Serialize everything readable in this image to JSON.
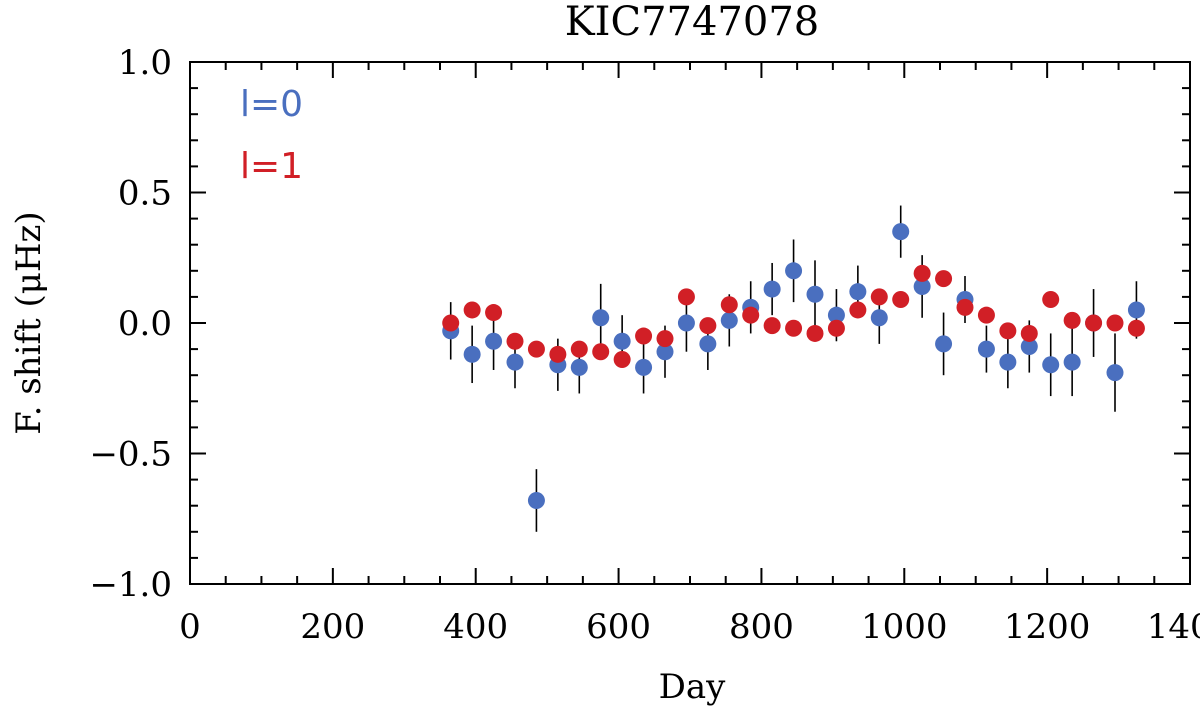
{
  "chart_data": {
    "type": "scatter",
    "title": "KIC7747078",
    "xlabel": "Day",
    "ylabel": "F. shift (μHz)",
    "xlim": [
      0,
      1400
    ],
    "ylim": [
      -1.0,
      1.0
    ],
    "xticks": [
      0,
      200,
      400,
      600,
      800,
      1000,
      1200,
      1400
    ],
    "xtick_labels": [
      "0",
      "200",
      "400",
      "600",
      "800",
      "1000",
      "1200",
      "1400"
    ],
    "yticks": [
      -1.0,
      -0.5,
      0.0,
      0.5,
      1.0
    ],
    "ytick_labels": [
      "−1.0",
      "−0.5",
      "0.0",
      "0.5",
      "1.0"
    ],
    "grid": false,
    "legend_position": "top-left",
    "series": [
      {
        "name": "l=0",
        "color": "#4a6fbf",
        "x": [
          365,
          395,
          425,
          455,
          485,
          515,
          545,
          575,
          605,
          635,
          665,
          695,
          725,
          755,
          785,
          815,
          845,
          875,
          905,
          935,
          965,
          995,
          1025,
          1055,
          1085,
          1115,
          1145,
          1175,
          1205,
          1235,
          1265,
          1295,
          1325
        ],
        "y": [
          -0.03,
          -0.12,
          -0.07,
          -0.15,
          -0.68,
          -0.16,
          -0.17,
          0.02,
          -0.07,
          -0.17,
          -0.11,
          0.0,
          -0.08,
          0.01,
          0.06,
          0.13,
          0.2,
          0.11,
          0.03,
          0.12,
          0.02,
          0.35,
          0.14,
          -0.08,
          0.09,
          -0.1,
          -0.15,
          -0.09,
          -0.16,
          -0.15,
          0.0,
          -0.19,
          0.05
        ],
        "err": [
          0.11,
          0.11,
          0.11,
          0.1,
          0.12,
          0.1,
          0.1,
          0.13,
          0.1,
          0.1,
          0.1,
          0.11,
          0.1,
          0.1,
          0.1,
          0.1,
          0.12,
          0.13,
          0.1,
          0.1,
          0.1,
          0.1,
          0.12,
          0.12,
          0.09,
          0.09,
          0.1,
          0.1,
          0.12,
          0.13,
          0.13,
          0.15,
          0.11
        ]
      },
      {
        "name": "l=1",
        "color": "#d11f26",
        "x": [
          365,
          395,
          425,
          455,
          485,
          515,
          545,
          575,
          605,
          635,
          665,
          695,
          725,
          755,
          785,
          815,
          845,
          875,
          905,
          935,
          965,
          995,
          1025,
          1055,
          1085,
          1115,
          1145,
          1175,
          1205,
          1235,
          1265,
          1295,
          1325
        ],
        "y": [
          0.0,
          0.05,
          0.04,
          -0.07,
          -0.1,
          -0.12,
          -0.1,
          -0.11,
          -0.14,
          -0.05,
          -0.06,
          0.1,
          -0.01,
          0.07,
          0.03,
          -0.01,
          -0.02,
          -0.04,
          -0.02,
          0.05,
          0.1,
          0.09,
          0.19,
          0.17,
          0.06,
          0.03,
          -0.03,
          -0.04,
          0.09,
          0.01,
          0.0,
          0.0,
          -0.02
        ]
      }
    ]
  }
}
